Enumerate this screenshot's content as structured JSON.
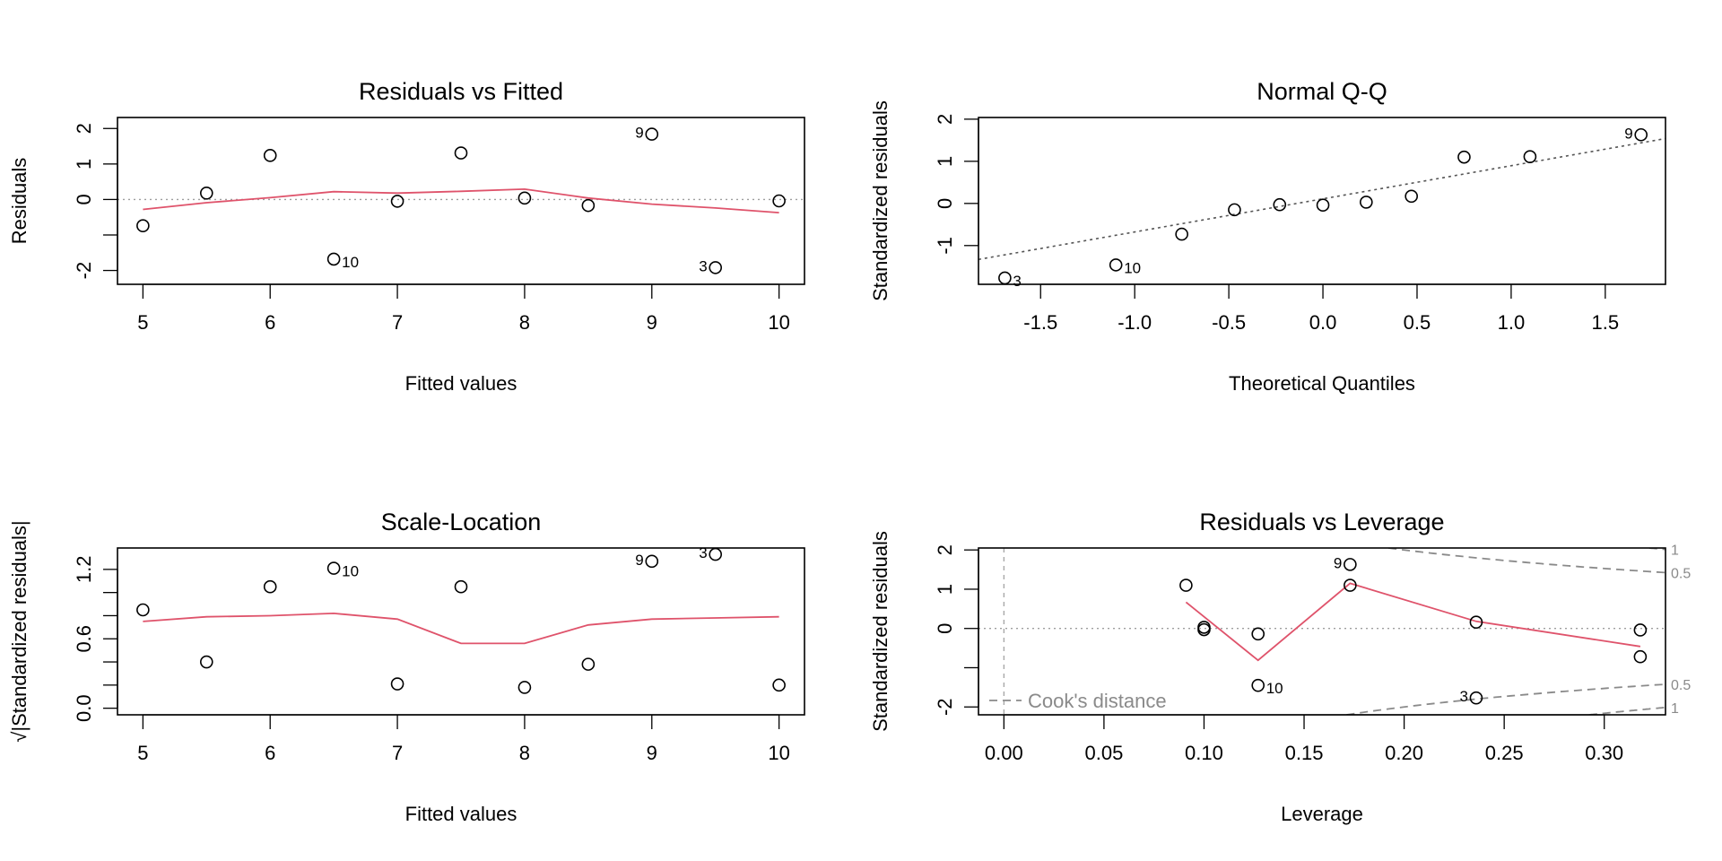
{
  "colors": {
    "points": "#000000",
    "smooth": "#DF536B",
    "reference": "#9E9E9E",
    "qqline": "#555555",
    "cook": "#8A8A8A"
  },
  "chart_data": [
    {
      "type": "scatter",
      "title": "Residuals vs Fitted",
      "xlabel": "Fitted values",
      "ylabel": "Residuals",
      "xlim": [
        4.8,
        10.2
      ],
      "ylim": [
        -2.39,
        2.31
      ],
      "xticks": [
        5,
        6,
        7,
        8,
        9,
        10
      ],
      "xtick_labels": [
        "5",
        "6",
        "7",
        "8",
        "9",
        "10"
      ],
      "yticks": [
        -2,
        -1,
        0,
        1,
        2
      ],
      "ytick_labels": [
        "-2",
        "",
        "0",
        "1",
        "2"
      ],
      "points": [
        {
          "x": 5.0,
          "y": -0.74,
          "label": ""
        },
        {
          "x": 5.5,
          "y": 0.18,
          "label": ""
        },
        {
          "x": 6.0,
          "y": 1.24,
          "label": ""
        },
        {
          "x": 6.5,
          "y": -1.68,
          "label": "10",
          "side": "right"
        },
        {
          "x": 7.0,
          "y": -0.05,
          "label": ""
        },
        {
          "x": 7.5,
          "y": 1.31,
          "label": ""
        },
        {
          "x": 8.0,
          "y": 0.04,
          "label": ""
        },
        {
          "x": 8.5,
          "y": -0.17,
          "label": ""
        },
        {
          "x": 9.0,
          "y": 1.84,
          "label": "9",
          "side": "left"
        },
        {
          "x": 9.5,
          "y": -1.92,
          "label": "3",
          "side": "left"
        },
        {
          "x": 10.0,
          "y": -0.04,
          "label": ""
        }
      ],
      "smooth": {
        "x": [
          5,
          5.5,
          6,
          6.5,
          7,
          7.5,
          8,
          8.5,
          9,
          9.5,
          10
        ],
        "y": [
          -0.28,
          -0.09,
          0.05,
          0.22,
          0.18,
          0.23,
          0.29,
          0.04,
          -0.13,
          -0.24,
          -0.37
        ]
      },
      "hline": 0
    },
    {
      "type": "scatter",
      "title": "Normal Q-Q",
      "xlabel": "Theoretical Quantiles",
      "ylabel": "Standardized residuals",
      "xlim": [
        -1.83,
        1.82
      ],
      "ylim": [
        -1.92,
        2.04
      ],
      "xticks": [
        -1.5,
        -1,
        -0.5,
        0,
        0.5,
        1,
        1.5
      ],
      "xtick_labels": [
        "-1.5",
        "-1.0",
        "-0.5",
        "0.0",
        "0.5",
        "1.0",
        "1.5"
      ],
      "yticks": [
        -1,
        0,
        1,
        2
      ],
      "ytick_labels": [
        "-1",
        "0",
        "1",
        "2"
      ],
      "points": [
        {
          "x": -1.69,
          "y": -1.77,
          "label": "3",
          "side": "right"
        },
        {
          "x": -1.1,
          "y": -1.46,
          "label": "10",
          "side": "right"
        },
        {
          "x": -0.75,
          "y": -0.73,
          "label": ""
        },
        {
          "x": -0.47,
          "y": -0.15,
          "label": ""
        },
        {
          "x": -0.23,
          "y": -0.03,
          "label": ""
        },
        {
          "x": 0.0,
          "y": -0.04,
          "label": ""
        },
        {
          "x": 0.23,
          "y": 0.03,
          "label": ""
        },
        {
          "x": 0.47,
          "y": 0.17,
          "label": ""
        },
        {
          "x": 0.75,
          "y": 1.1,
          "label": ""
        },
        {
          "x": 1.1,
          "y": 1.11,
          "label": ""
        },
        {
          "x": 1.69,
          "y": 1.63,
          "label": "9",
          "side": "left"
        }
      ],
      "qqline": {
        "x": [
          -1.83,
          1.82
        ],
        "y": [
          -1.33,
          1.54
        ]
      }
    },
    {
      "type": "scatter",
      "title": "Scale-Location",
      "xlabel": "Fitted values",
      "ylabel": "√|Standardized residuals|",
      "xlim": [
        4.8,
        10.2
      ],
      "ylim": [
        -0.057,
        1.385
      ],
      "xticks": [
        5,
        6,
        7,
        8,
        9,
        10
      ],
      "xtick_labels": [
        "5",
        "6",
        "7",
        "8",
        "9",
        "10"
      ],
      "yticks": [
        0,
        0.2,
        0.4,
        0.6,
        0.8,
        1.0,
        1.2
      ],
      "ytick_labels": [
        "0.0",
        "",
        "",
        "0.6",
        "",
        "",
        "1.2"
      ],
      "points": [
        {
          "x": 5.0,
          "y": 0.85,
          "label": ""
        },
        {
          "x": 5.5,
          "y": 0.4,
          "label": ""
        },
        {
          "x": 6.0,
          "y": 1.05,
          "label": ""
        },
        {
          "x": 6.5,
          "y": 1.21,
          "label": "10",
          "side": "right"
        },
        {
          "x": 7.0,
          "y": 0.21,
          "label": ""
        },
        {
          "x": 7.5,
          "y": 1.05,
          "label": ""
        },
        {
          "x": 8.0,
          "y": 0.18,
          "label": ""
        },
        {
          "x": 8.5,
          "y": 0.38,
          "label": ""
        },
        {
          "x": 9.0,
          "y": 1.27,
          "label": "9",
          "side": "left"
        },
        {
          "x": 9.5,
          "y": 1.33,
          "label": "3",
          "side": "left"
        },
        {
          "x": 10.0,
          "y": 0.2,
          "label": ""
        }
      ],
      "smooth": {
        "x": [
          5,
          5.5,
          6,
          6.5,
          7,
          7.5,
          8,
          8.5,
          9,
          9.5,
          10
        ],
        "y": [
          0.75,
          0.79,
          0.8,
          0.82,
          0.77,
          0.56,
          0.56,
          0.72,
          0.77,
          0.78,
          0.79
        ]
      }
    },
    {
      "type": "scatter",
      "title": "Residuals vs Leverage",
      "xlabel": "Leverage",
      "ylabel": "Standardized residuals",
      "xlim": [
        -0.0127,
        0.3306
      ],
      "ylim": [
        -2.2,
        2.05
      ],
      "xticks": [
        0,
        0.05,
        0.1,
        0.15,
        0.2,
        0.25,
        0.3
      ],
      "xtick_labels": [
        "0.00",
        "0.05",
        "0.10",
        "0.15",
        "0.20",
        "0.25",
        "0.30"
      ],
      "yticks": [
        -2,
        -1,
        0,
        1,
        2
      ],
      "ytick_labels": [
        "-2",
        "",
        "0",
        "1",
        "2"
      ],
      "points": [
        {
          "x": 0.091,
          "y": 1.1,
          "label": ""
        },
        {
          "x": 0.1,
          "y": 0.03,
          "label": ""
        },
        {
          "x": 0.1,
          "y": -0.03,
          "label": ""
        },
        {
          "x": 0.127,
          "y": -0.14,
          "label": ""
        },
        {
          "x": 0.127,
          "y": -1.45,
          "label": "10",
          "side": "right"
        },
        {
          "x": 0.173,
          "y": 1.63,
          "label": "9",
          "side": "left"
        },
        {
          "x": 0.173,
          "y": 1.1,
          "label": ""
        },
        {
          "x": 0.236,
          "y": 0.16,
          "label": ""
        },
        {
          "x": 0.236,
          "y": -1.77,
          "label": "3",
          "side": "left"
        },
        {
          "x": 0.318,
          "y": -0.04,
          "label": ""
        },
        {
          "x": 0.318,
          "y": -0.72,
          "label": ""
        }
      ],
      "smooth": {
        "x": [
          0.091,
          0.127,
          0.173,
          0.236,
          0.318
        ],
        "y": [
          0.67,
          -0.81,
          1.15,
          0.18,
          -0.46
        ]
      },
      "hline": 0,
      "vline": 0,
      "cook": {
        "levels": [
          0.5,
          1
        ],
        "level_labels": [
          "0.5",
          "1"
        ],
        "p": 2
      },
      "legend": {
        "label": "Cook's distance",
        "position": "bottom-left"
      }
    }
  ]
}
